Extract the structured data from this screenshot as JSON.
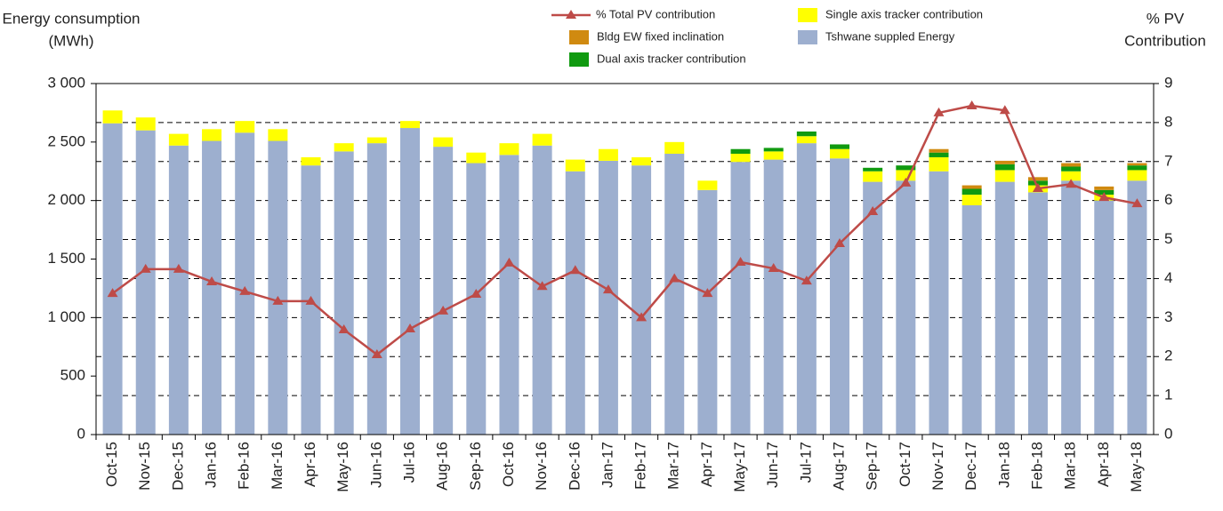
{
  "chart_data": {
    "type": "bar",
    "stacked": true,
    "ylabel_lines": [
      "Energy consumption",
      "(MWh)"
    ],
    "y2label_lines": [
      "% PV",
      "Contribution"
    ],
    "categories": [
      "Oct-15",
      "Nov-15",
      "Dec-15",
      "Jan-16",
      "Feb-16",
      "Mar-16",
      "Apr-16",
      "May-16",
      "Jun-16",
      "Jul-16",
      "Aug-16",
      "Sep-16",
      "Oct-16",
      "Nov-16",
      "Dec-16",
      "Jan-17",
      "Feb-17",
      "Mar-17",
      "Apr-17",
      "May-17",
      "Jun-17",
      "Jul-17",
      "Aug-17",
      "Sep-17",
      "Oct-17",
      "Nov-17",
      "Dec-17",
      "Jan-18",
      "Feb-18",
      "Mar-18",
      "Apr-18",
      "May-18"
    ],
    "series": [
      {
        "name": "Tshwane suppled Energy",
        "color": "#9dafcf",
        "values": [
          2660,
          2600,
          2470,
          2510,
          2580,
          2510,
          2300,
          2420,
          2490,
          2620,
          2460,
          2320,
          2390,
          2470,
          2250,
          2340,
          2300,
          2400,
          2090,
          2330,
          2350,
          2490,
          2360,
          2160,
          2170,
          2250,
          1960,
          2160,
          2070,
          2170,
          2000,
          2170
        ]
      },
      {
        "name": "Single axis tracker contribution",
        "color": "#ffff00",
        "values": [
          110,
          110,
          100,
          100,
          100,
          100,
          70,
          70,
          50,
          60,
          80,
          90,
          100,
          100,
          100,
          100,
          70,
          100,
          80,
          70,
          70,
          60,
          80,
          90,
          90,
          120,
          90,
          100,
          60,
          80,
          50,
          90
        ]
      },
      {
        "name": "Dual axis tracker contribution",
        "color": "#109a10",
        "values": [
          0,
          0,
          0,
          0,
          0,
          0,
          0,
          0,
          0,
          0,
          0,
          0,
          0,
          0,
          0,
          0,
          0,
          0,
          0,
          40,
          30,
          40,
          40,
          30,
          40,
          40,
          50,
          50,
          40,
          40,
          40,
          40
        ]
      },
      {
        "name": "Bldg EW fixed inclination",
        "color": "#d08a10",
        "values": [
          0,
          0,
          0,
          0,
          0,
          0,
          0,
          0,
          0,
          0,
          0,
          0,
          0,
          0,
          0,
          0,
          0,
          0,
          0,
          0,
          0,
          0,
          0,
          0,
          0,
          30,
          30,
          30,
          30,
          30,
          30,
          20
        ]
      },
      {
        "name": "% Total PV contribution",
        "color": "#be4b48",
        "type": "line",
        "axis": "y2",
        "values": [
          3.62,
          4.24,
          4.24,
          3.92,
          3.67,
          3.42,
          3.42,
          2.69,
          2.05,
          2.71,
          3.17,
          3.6,
          4.4,
          3.8,
          4.21,
          3.71,
          3.0,
          4.0,
          3.62,
          4.42,
          4.26,
          3.94,
          4.9,
          5.72,
          6.45,
          8.25,
          8.43,
          8.31,
          6.31,
          6.42,
          6.08,
          5.92
        ]
      }
    ],
    "ylim": [
      0,
      3000
    ],
    "yticks": [
      0,
      500,
      {
        "value": 1000,
        "label": "1 000"
      },
      {
        "value": 1500,
        "label": "1 500"
      },
      {
        "value": 2000,
        "label": "2 000"
      },
      {
        "value": 2500,
        "label": "2 500"
      },
      {
        "value": 3000,
        "label": "3 000"
      }
    ],
    "y2lim": [
      0,
      9
    ],
    "y2ticks": [
      0,
      1,
      2,
      3,
      4,
      5,
      6,
      7,
      8,
      9
    ],
    "grid": true
  }
}
